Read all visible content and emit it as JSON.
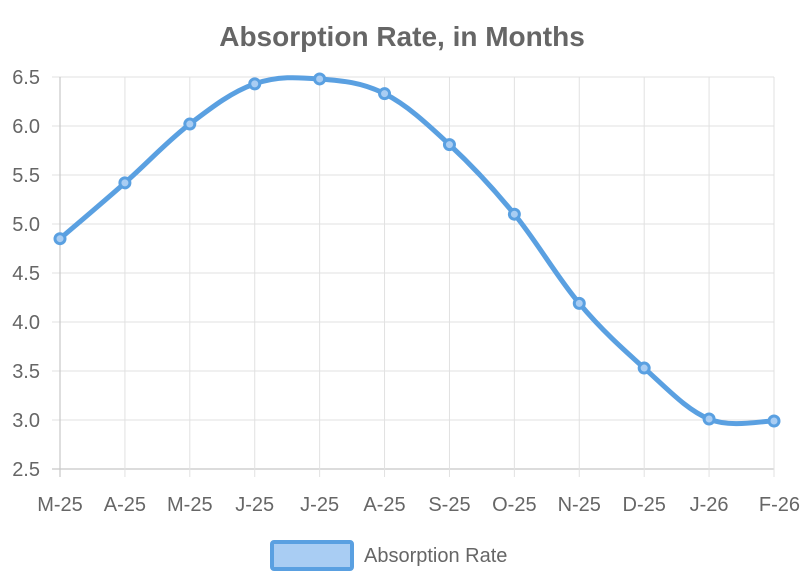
{
  "chart_data": {
    "type": "line",
    "title": "Absorption Rate, in Months",
    "xlabel": "",
    "ylabel": "",
    "categories": [
      "M-25",
      "A-25",
      "M-25",
      "J-25",
      "J-25",
      "A-25",
      "S-25",
      "O-25",
      "N-25",
      "D-25",
      "J-26",
      "F-26"
    ],
    "series": [
      {
        "name": "Absorption Rate",
        "values": [
          4.85,
          5.42,
          6.02,
          6.43,
          6.48,
          6.33,
          5.81,
          5.1,
          4.19,
          3.53,
          3.01,
          2.99
        ],
        "color": "#5aa0e1"
      }
    ],
    "ylim": [
      2.5,
      6.5
    ],
    "yticks": [
      "6.5",
      "6.0",
      "5.5",
      "5.0",
      "4.5",
      "4.0",
      "3.5",
      "3.0",
      "2.5"
    ],
    "grid": true,
    "legend_position": "bottom",
    "colors": {
      "line": "#5aa0e1",
      "point_fill": "#a9cdf3",
      "legend_fill": "#a9cdf3",
      "text": "#666666",
      "grid": "#e1e1e1"
    }
  }
}
